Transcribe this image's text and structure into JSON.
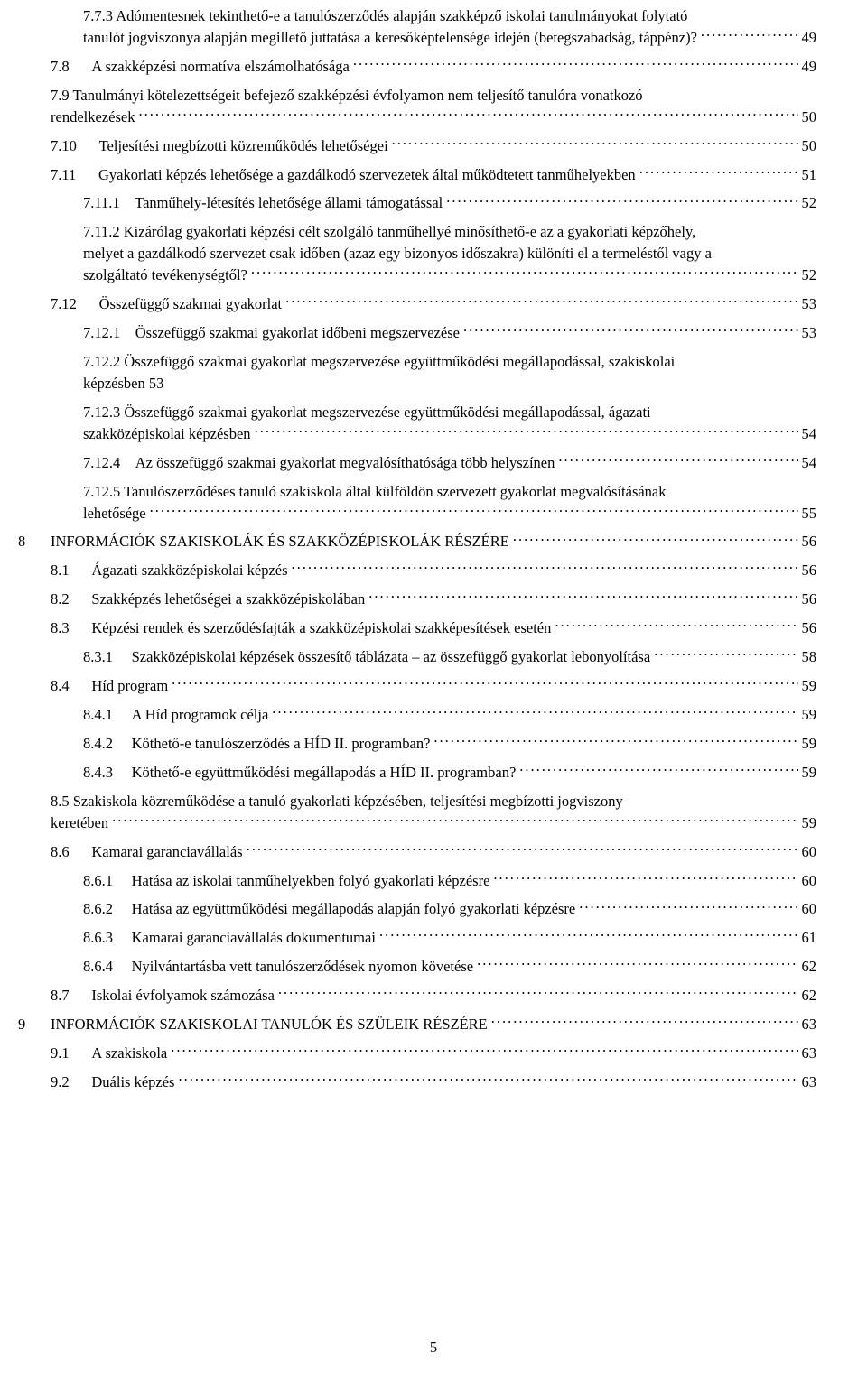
{
  "page_number": "5",
  "entries": [
    {
      "type": "wrap",
      "indent": 1,
      "lines": [
        "7.7.3      Adómentesnek tekinthető-e a tanulószerződés alapján szakképző iskolai tanulmányokat folytató",
        "tanulót jogviszonya alapján megillető juttatása a keresőképtelensége idején (betegszabadság, táppénz)?"
      ],
      "page": "49",
      "last_ends_left": true
    },
    {
      "type": "line",
      "indent": 0,
      "num": "7.8",
      "gap": "      ",
      "title": "A szakképzési normatíva elszámolhatósága",
      "page": "49"
    },
    {
      "type": "wrap",
      "indent": 0,
      "lines": [
        "7.9      Tanulmányi kötelezettségeit befejező szakképzési évfolyamon nem teljesítő tanulóra vonatkozó",
        "rendelkezések"
      ],
      "page": "50"
    },
    {
      "type": "line",
      "indent": 0,
      "num": "7.10",
      "gap": "      ",
      "title": "Teljesítési megbízotti közreműködés lehetőségei",
      "page": "50"
    },
    {
      "type": "line",
      "indent": 0,
      "num": "7.11",
      "gap": "      ",
      "title": "Gyakorlati képzés lehetősége a gazdálkodó szervezetek által működtetett tanműhelyekben",
      "page": "51"
    },
    {
      "type": "line",
      "indent": 1,
      "num": "7.11.1",
      "gap": "    ",
      "title": "Tanműhely-létesítés lehetősége állami támogatással",
      "page": "52"
    },
    {
      "type": "wrap",
      "indent": 1,
      "lines": [
        "7.11.2    Kizárólag gyakorlati képzési célt szolgáló tanműhellyé minősíthető-e az a gyakorlati képzőhely,",
        "melyet a gazdálkodó szervezet csak időben (azaz egy bizonyos időszakra) különíti el a termeléstől vagy a",
        "szolgáltató tevékenységtől?"
      ],
      "page": "52"
    },
    {
      "type": "line",
      "indent": 0,
      "num": "7.12",
      "gap": "      ",
      "title": "Összefüggő szakmai gyakorlat",
      "page": "53"
    },
    {
      "type": "line",
      "indent": 1,
      "num": "7.12.1",
      "gap": "    ",
      "title": "Összefüggő szakmai gyakorlat időbeni megszervezése",
      "page": "53"
    },
    {
      "type": "wrap",
      "indent": 1,
      "lines": [
        "7.12.2    Összefüggő szakmai gyakorlat megszervezése együttműködési megállapodással, szakiskolai",
        "képzésben 53"
      ],
      "page": null
    },
    {
      "type": "wrap",
      "indent": 1,
      "lines": [
        "7.12.3    Összefüggő szakmai gyakorlat megszervezése együttműködési megállapodással, ágazati",
        "szakközépiskolai képzésben"
      ],
      "page": "54"
    },
    {
      "type": "line",
      "indent": 1,
      "num": "7.12.4",
      "gap": "    ",
      "title": "Az összefüggő szakmai gyakorlat megvalósíthatósága több helyszínen",
      "page": "54"
    },
    {
      "type": "wrap",
      "indent": 1,
      "lines": [
        "7.12.5    Tanulószerződéses tanuló szakiskola által külföldön szervezett gyakorlat megvalósításának",
        "lehetősége"
      ],
      "page": "55"
    },
    {
      "type": "line",
      "indent": 0,
      "num": "8",
      "gap": "    ",
      "title": "INFORMÁCIÓK SZAKISKOLÁK ÉS SZAKKÖZÉPISKOLÁK RÉSZÉRE",
      "page": "56",
      "top_level": true
    },
    {
      "type": "line",
      "indent": 0,
      "num": "8.1",
      "gap": "      ",
      "title": "Ágazati szakközépiskolai képzés",
      "page": "56"
    },
    {
      "type": "line",
      "indent": 0,
      "num": "8.2",
      "gap": "      ",
      "title": "Szakképzés lehetőségei a szakközépiskolában",
      "page": "56"
    },
    {
      "type": "line",
      "indent": 0,
      "num": "8.3",
      "gap": "      ",
      "title": "Képzési rendek és szerződésfajták a szakközépiskolai szakképesítések esetén",
      "page": "56"
    },
    {
      "type": "line",
      "indent": 1,
      "num": "8.3.1",
      "gap": "     ",
      "title": "Szakközépiskolai képzések összesítő táblázata – az összefüggő gyakorlat lebonyolítása",
      "page": "58"
    },
    {
      "type": "line",
      "indent": 0,
      "num": "8.4",
      "gap": "      ",
      "title": "Híd program",
      "page": "59"
    },
    {
      "type": "line",
      "indent": 1,
      "num": "8.4.1",
      "gap": "     ",
      "title": "A Híd programok célja",
      "page": "59"
    },
    {
      "type": "line",
      "indent": 1,
      "num": "8.4.2",
      "gap": "     ",
      "title": "Köthető-e tanulószerződés a HÍD II. programban?",
      "page": "59"
    },
    {
      "type": "line",
      "indent": 1,
      "num": "8.4.3",
      "gap": "     ",
      "title": "Köthető-e együttműködési megállapodás a HÍD II. programban?",
      "page": "59"
    },
    {
      "type": "wrap",
      "indent": 0,
      "lines": [
        "8.5      Szakiskola közreműködése a tanuló gyakorlati képzésében, teljesítési megbízotti jogviszony",
        "keretében"
      ],
      "page": "59"
    },
    {
      "type": "line",
      "indent": 0,
      "num": "8.6",
      "gap": "      ",
      "title": "Kamarai garanciavállalás",
      "page": "60"
    },
    {
      "type": "line",
      "indent": 1,
      "num": "8.6.1",
      "gap": "     ",
      "title": "Hatása az iskolai tanműhelyekben folyó gyakorlati képzésre",
      "page": "60"
    },
    {
      "type": "line",
      "indent": 1,
      "num": "8.6.2",
      "gap": "     ",
      "title": "Hatása az együttműködési megállapodás alapján folyó gyakorlati képzésre",
      "page": "60"
    },
    {
      "type": "line",
      "indent": 1,
      "num": "8.6.3",
      "gap": "     ",
      "title": "Kamarai garanciavállalás dokumentumai",
      "page": "61"
    },
    {
      "type": "line",
      "indent": 1,
      "num": "8.6.4",
      "gap": "     ",
      "title": "Nyilvántartásba vett tanulószerződések nyomon követése",
      "page": "62"
    },
    {
      "type": "line",
      "indent": 0,
      "num": "8.7",
      "gap": "      ",
      "title": "Iskolai évfolyamok számozása",
      "page": "62"
    },
    {
      "type": "line",
      "indent": 0,
      "num": "9",
      "gap": "    ",
      "title": "INFORMÁCIÓK SZAKISKOLAI TANULÓK ÉS SZÜLEIK RÉSZÉRE",
      "page": "63",
      "top_level": true
    },
    {
      "type": "line",
      "indent": 0,
      "num": "9.1",
      "gap": "      ",
      "title": "A szakiskola",
      "page": "63"
    },
    {
      "type": "line",
      "indent": 0,
      "num": "9.2",
      "gap": "      ",
      "title": "Duális képzés",
      "page": "63"
    }
  ]
}
